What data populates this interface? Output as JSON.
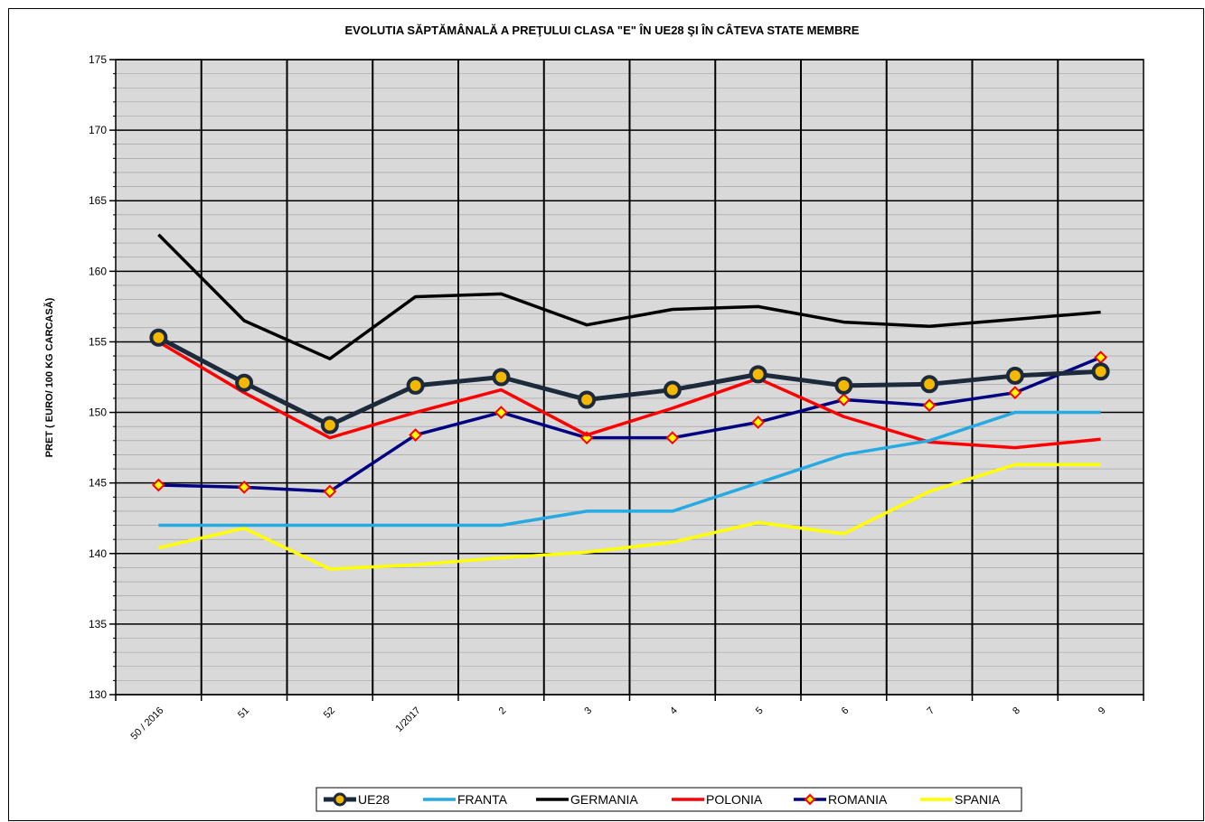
{
  "chart_data": {
    "type": "line",
    "title": "EVOLUTIA SĂPTĂMÂNALĂ A PREŢULUI CLASA \"E\"  ÎN  UE28 ŞI ÎN  CÂTEVA STATE MEMBRE",
    "y_label": "PRET ( EURO/ 100 KG CARCASĂ)",
    "categories": [
      "50 / 2016",
      "51",
      "52",
      "1/2017",
      "2",
      "3",
      "4",
      "5",
      "6",
      "7",
      "8",
      "9"
    ],
    "ylim": [
      130,
      175
    ],
    "yticks": [
      130,
      135,
      140,
      145,
      150,
      155,
      160,
      165,
      170,
      175
    ],
    "grid": true,
    "legend": "bottom",
    "series": [
      {
        "name": "UE28",
        "color": "#1c2a3c",
        "marker": "circle",
        "marker_color": "#f5b800",
        "values": [
          155.3,
          152.1,
          149.1,
          151.9,
          152.5,
          150.9,
          151.6,
          152.7,
          151.9,
          152.0,
          152.6,
          152.9
        ]
      },
      {
        "name": "FRANTA",
        "color": "#27aae1",
        "values": [
          142.0,
          142.0,
          142.0,
          142.0,
          142.0,
          143.0,
          143.0,
          145.0,
          147.0,
          148.0,
          150.0,
          150.0
        ]
      },
      {
        "name": "GERMANIA",
        "color": "#000000",
        "values": [
          162.6,
          156.5,
          153.8,
          158.2,
          158.4,
          156.2,
          157.3,
          157.5,
          156.4,
          156.1,
          156.6,
          157.1
        ]
      },
      {
        "name": "POLONIA",
        "color": "#ff0000",
        "values": [
          155.0,
          151.4,
          148.2,
          150.0,
          151.6,
          148.4,
          150.3,
          152.4,
          149.7,
          147.9,
          147.5,
          148.1
        ]
      },
      {
        "name": "ROMANIA",
        "color": "#000080",
        "marker": "diamond",
        "marker_color": "#ffff00",
        "values": [
          144.85,
          144.7,
          144.4,
          148.4,
          150.0,
          148.2,
          148.2,
          149.3,
          150.9,
          150.5,
          151.4,
          153.9
        ]
      },
      {
        "name": "SPANIA",
        "color": "#ffff00",
        "values": [
          140.4,
          141.8,
          138.9,
          139.2,
          139.7,
          140.1,
          140.8,
          142.2,
          141.4,
          144.4,
          146.3,
          146.3
        ]
      }
    ]
  }
}
